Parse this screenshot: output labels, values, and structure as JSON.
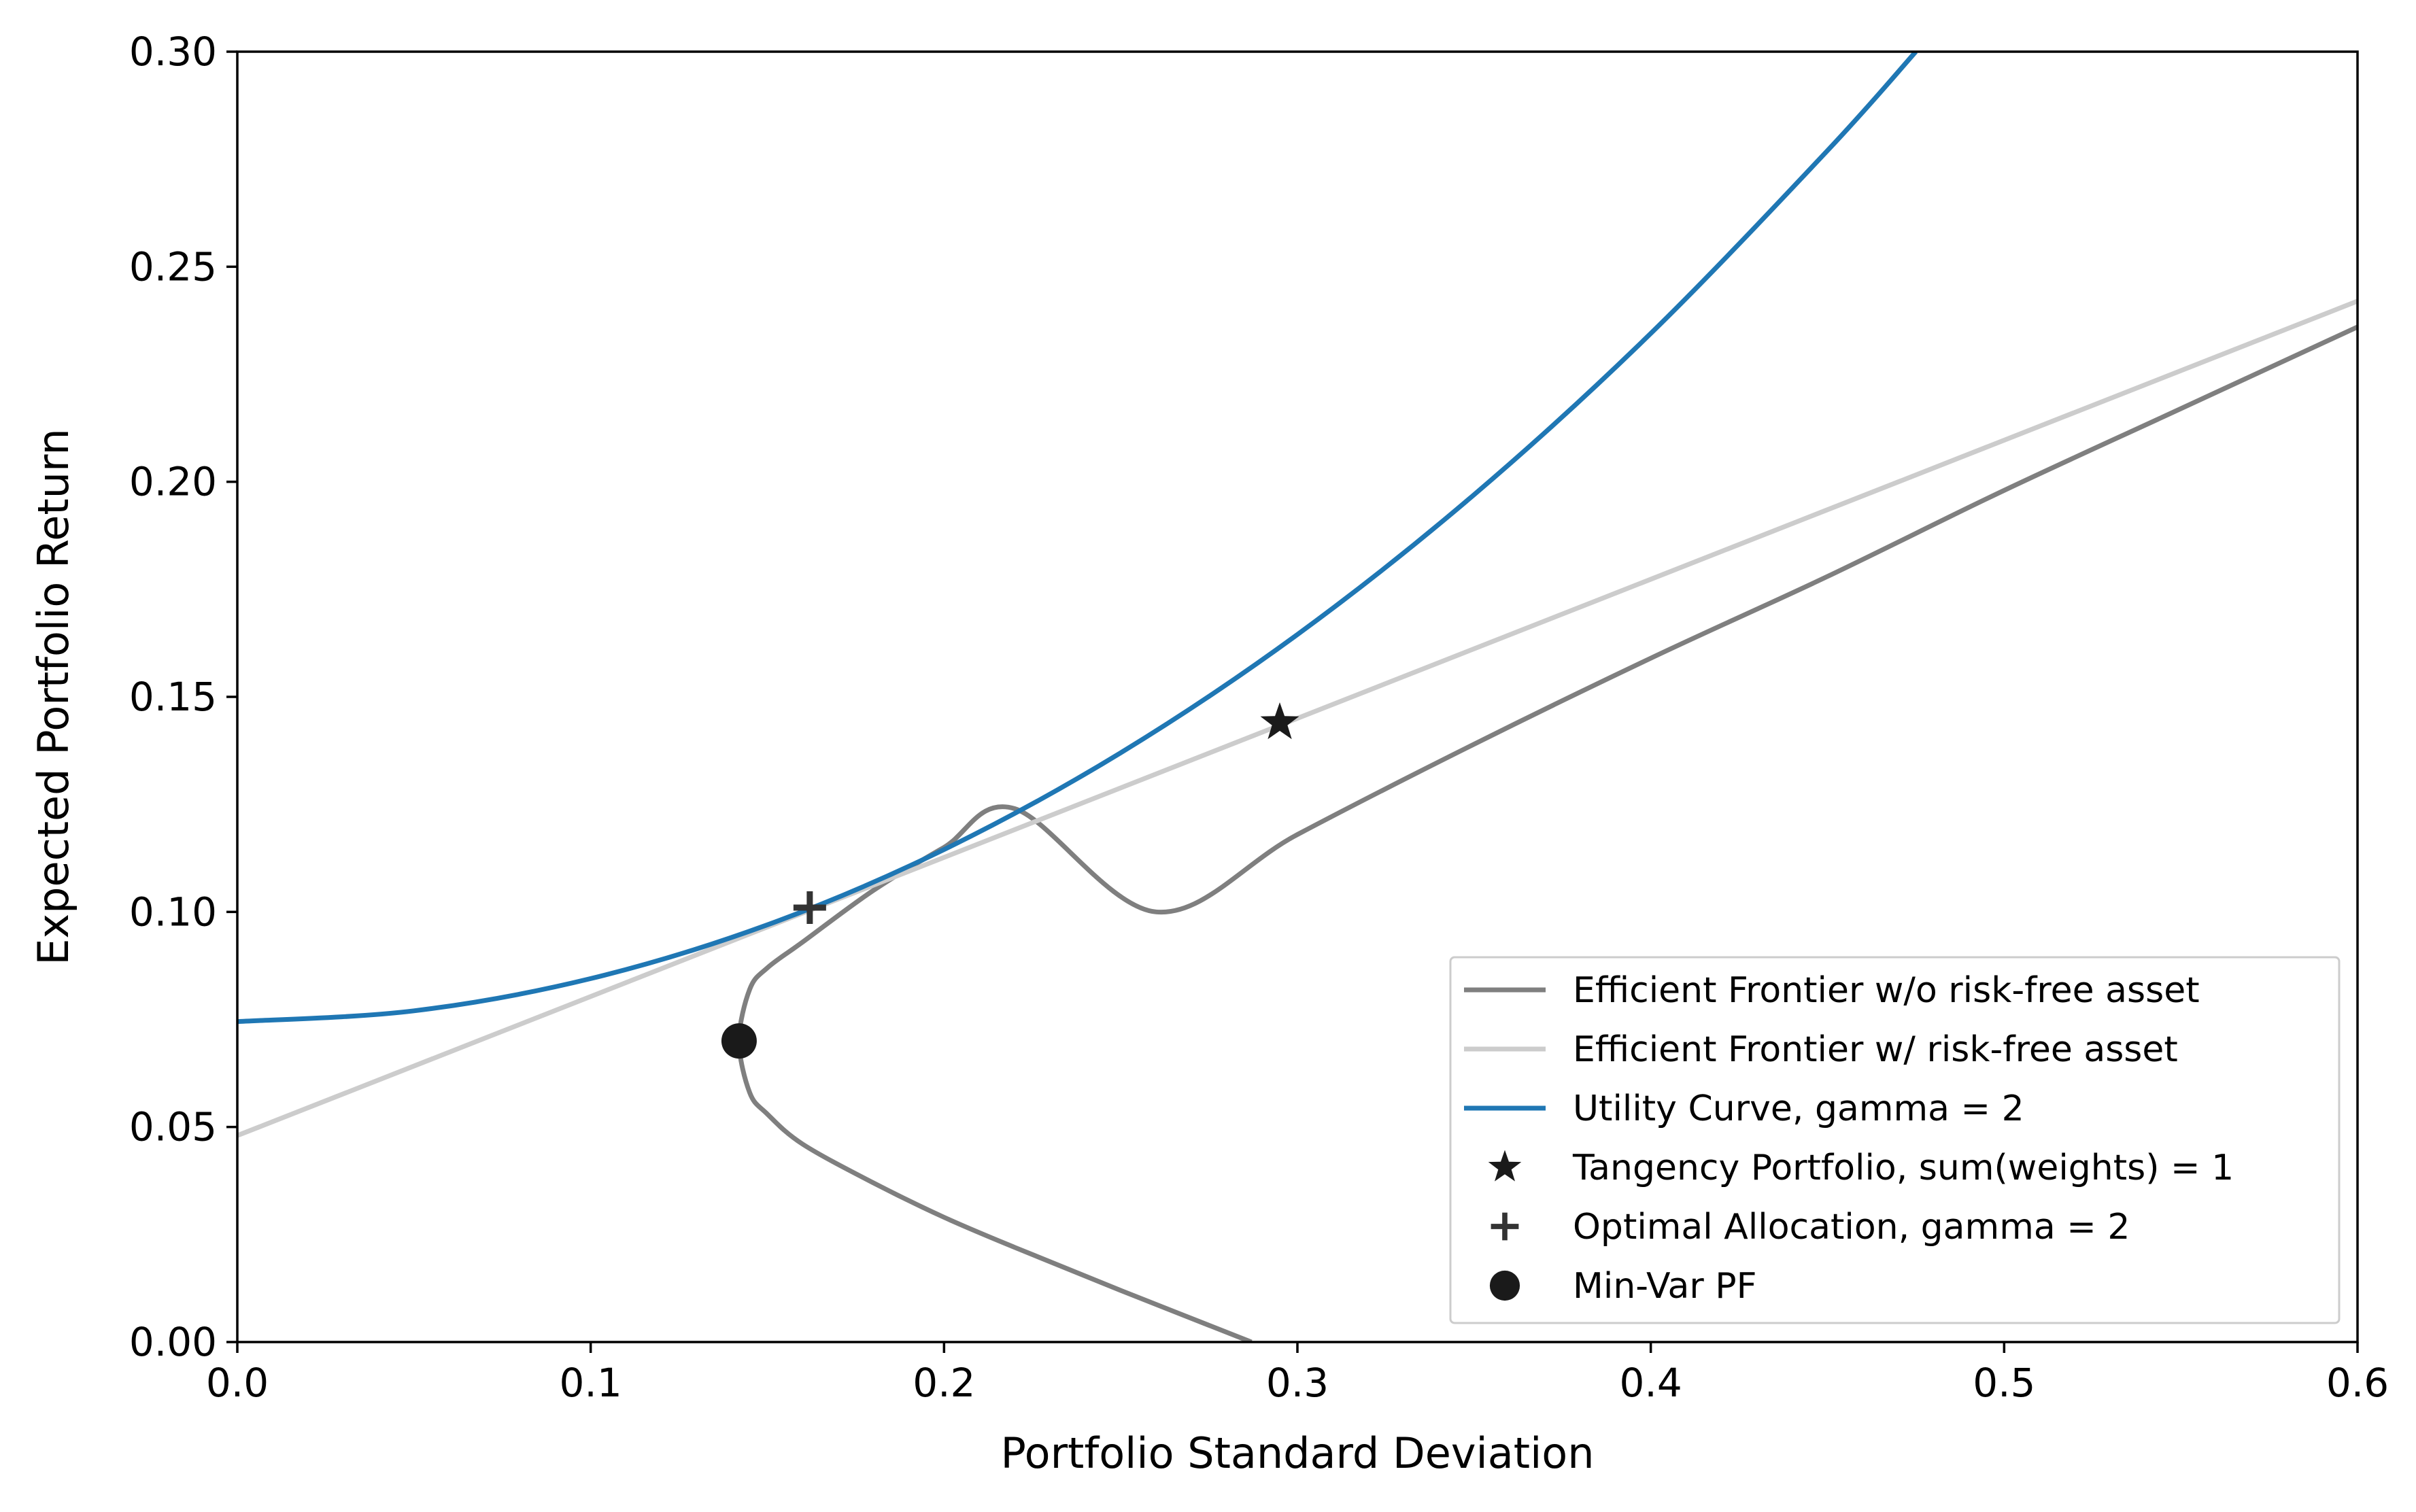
{
  "chart_data": {
    "type": "line",
    "xlabel": "Portfolio Standard Deviation",
    "ylabel": "Expected Portfolio Return",
    "xlim": [
      0.0,
      0.6
    ],
    "ylim": [
      0.0,
      0.3
    ],
    "x_ticks": [
      "0.0",
      "0.1",
      "0.2",
      "0.3",
      "0.4",
      "0.5",
      "0.6"
    ],
    "y_ticks": [
      "0.00",
      "0.05",
      "0.10",
      "0.15",
      "0.20",
      "0.25",
      "0.30"
    ],
    "grid": false,
    "legend_position": "lower-right",
    "series": [
      {
        "name": "Efficient Frontier w/o risk-free asset",
        "kind": "line",
        "color": "#7f7f7f",
        "x": [
          0.6,
          0.55,
          0.5,
          0.45,
          0.4,
          0.35,
          0.3,
          0.26,
          0.22,
          0.2,
          0.18,
          0.16,
          0.15,
          0.145,
          0.142,
          0.145,
          0.15,
          0.16,
          0.18,
          0.2,
          0.22,
          0.25,
          0.287
        ],
        "y": [
          0.236,
          0.217,
          0.198,
          0.178,
          0.159,
          0.139,
          0.118,
          0.1,
          0.124,
          0.115,
          0.105,
          0.093,
          0.087,
          0.082,
          0.07,
          0.058,
          0.053,
          0.046,
          0.037,
          0.029,
          0.022,
          0.012,
          0.0
        ],
        "note": ""
      },
      {
        "name": "Efficient Frontier w/ risk-free asset",
        "kind": "line",
        "color": "#cccccc",
        "x": [
          0.0,
          0.6
        ],
        "y": [
          0.048,
          0.242
        ]
      },
      {
        "name": "Utility Curve, gamma = 2",
        "kind": "line",
        "color": "#1f77b4",
        "x": [
          0.0,
          0.05,
          0.1,
          0.15,
          0.2,
          0.25,
          0.3,
          0.35,
          0.4,
          0.45,
          0.475
        ],
        "y": [
          0.0745,
          0.077,
          0.0845,
          0.097,
          0.1145,
          0.137,
          0.1645,
          0.197,
          0.2345,
          0.277,
          0.3
        ]
      },
      {
        "name": "Tangency Portfolio, sum(weights) = 1",
        "kind": "marker",
        "marker": "star",
        "color": "#1a1a1a",
        "x": [
          0.295
        ],
        "y": [
          0.144
        ]
      },
      {
        "name": "Optimal Allocation, gamma = 2",
        "kind": "marker",
        "marker": "plus",
        "color": "#333333",
        "x": [
          0.162
        ],
        "y": [
          0.101
        ]
      },
      {
        "name": "Min-Var PF",
        "kind": "marker",
        "marker": "circle",
        "color": "#1a1a1a",
        "x": [
          0.142
        ],
        "y": [
          0.07
        ]
      }
    ]
  }
}
